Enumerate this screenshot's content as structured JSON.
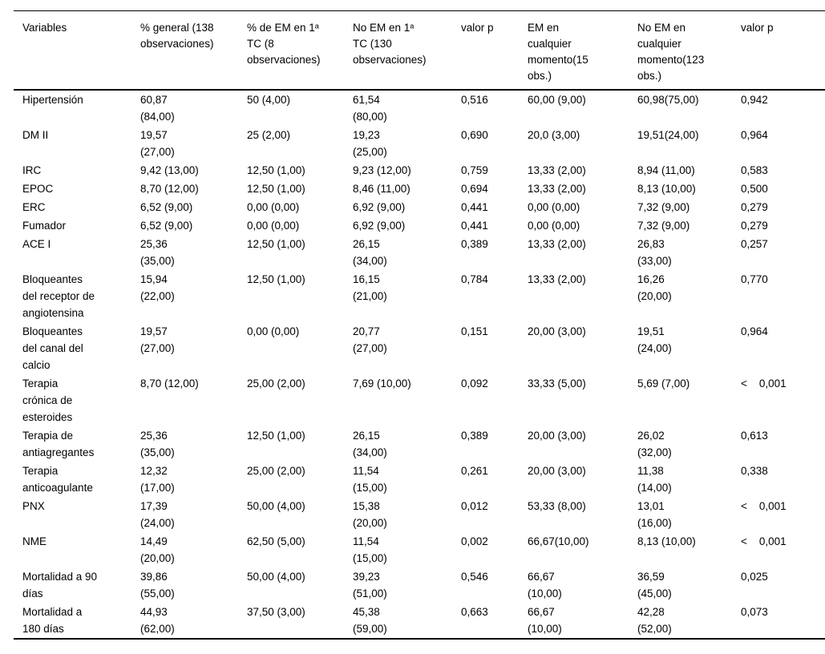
{
  "page": {
    "background_color": "#ffffff",
    "text_color": "#000000"
  },
  "table": {
    "columns": [
      "Variables",
      "% general (138\nobservaciones)",
      "% de EM en 1ᵃ\nTC (8\nobservaciones)",
      "No EM en 1ᵃ\nTC (130\nobservaciones)",
      "valor p",
      "EM en\ncualquier\nmomento(15\nobs.)",
      "No EM en\ncualquier\nmomento(123\nobs.)",
      "valor p"
    ],
    "rows": [
      [
        "Hipertensión",
        "60,87\n(84,00)",
        "50 (4,00)",
        "61,54\n(80,00)",
        "0,516",
        "60,00 (9,00)",
        "60,98(75,00)",
        "0,942"
      ],
      [
        "DM II",
        "19,57\n(27,00)",
        "25 (2,00)",
        "19,23\n(25,00)",
        "0,690",
        "20,0 (3,00)",
        "19,51(24,00)",
        "0,964"
      ],
      [
        "IRC",
        "9,42 (13,00)",
        "12,50 (1,00)",
        "9,23 (12,00)",
        "0,759",
        "13,33 (2,00)",
        "8,94 (11,00)",
        "0,583"
      ],
      [
        "EPOC",
        "8,70 (12,00)",
        "12,50 (1,00)",
        "8,46 (11,00)",
        "0,694",
        "13,33 (2,00)",
        "8,13 (10,00)",
        "0,500"
      ],
      [
        "ERC",
        "6,52 (9,00)",
        "0,00 (0,00)",
        "6,92 (9,00)",
        "0,441",
        "0,00 (0,00)",
        "7,32 (9,00)",
        "0,279"
      ],
      [
        "Fumador",
        "6,52 (9,00)",
        "0,00 (0,00)",
        "6,92 (9,00)",
        "0,441",
        "0,00 (0,00)",
        "7,32 (9,00)",
        "0,279"
      ],
      [
        "ACE I",
        "25,36\n(35,00)",
        "12,50 (1,00)",
        "26,15\n(34,00)",
        "0,389",
        "13,33 (2,00)",
        "26,83\n(33,00)",
        "0,257"
      ],
      [
        "Bloqueantes\ndel receptor de\nangiotensina",
        "15,94\n(22,00)",
        "12,50 (1,00)",
        "16,15\n(21,00)",
        "0,784",
        "13,33 (2,00)",
        "16,26\n(20,00)",
        "0,770"
      ],
      [
        "Bloqueantes\ndel canal del\ncalcio",
        "19,57\n(27,00)",
        "0,00 (0,00)",
        "20,77\n(27,00)",
        "0,151",
        "20,00 (3,00)",
        "19,51\n(24,00)",
        "0,964"
      ],
      [
        "Terapia\ncrónica de\nesteroides",
        "8,70 (12,00)",
        "25,00 (2,00)",
        "7,69 (10,00)",
        "0,092",
        "33,33 (5,00)",
        "5,69 (7,00)",
        "<    0,001"
      ],
      [
        "Terapia de\nantiagregantes",
        "25,36\n(35,00)",
        "12,50 (1,00)",
        "26,15\n(34,00)",
        "0,389",
        "20,00 (3,00)",
        "26,02\n(32,00)",
        "0,613"
      ],
      [
        "Terapia\nanticoagulante",
        "12,32\n(17,00)",
        "25,00 (2,00)",
        "11,54\n(15,00)",
        "0,261",
        "20,00 (3,00)",
        "11,38\n(14,00)",
        "0,338"
      ],
      [
        "PNX",
        "17,39\n(24,00)",
        "50,00 (4,00)",
        "15,38\n(20,00)",
        "0,012",
        "53,33 (8,00)",
        "13,01\n(16,00)",
        "<    0,001"
      ],
      [
        "NME",
        "14,49\n(20,00)",
        "62,50 (5,00)",
        "11,54\n(15,00)",
        "0,002",
        "66,67(10,00)",
        "8,13 (10,00)",
        "<    0,001"
      ],
      [
        "Mortalidad a 90\ndías",
        "39,86\n(55,00)",
        "50,00 (4,00)",
        "39,23\n(51,00)",
        "0,546",
        "66,67\n(10,00)",
        "36,59\n(45,00)",
        "0,025"
      ],
      [
        "Mortalidad a\n180 días",
        "44,93\n(62,00)",
        "37,50 (3,00)",
        "45,38\n(59,00)",
        "0,663",
        "66,67\n(10,00)",
        "42,28\n(52,00)",
        "0,073"
      ]
    ]
  }
}
